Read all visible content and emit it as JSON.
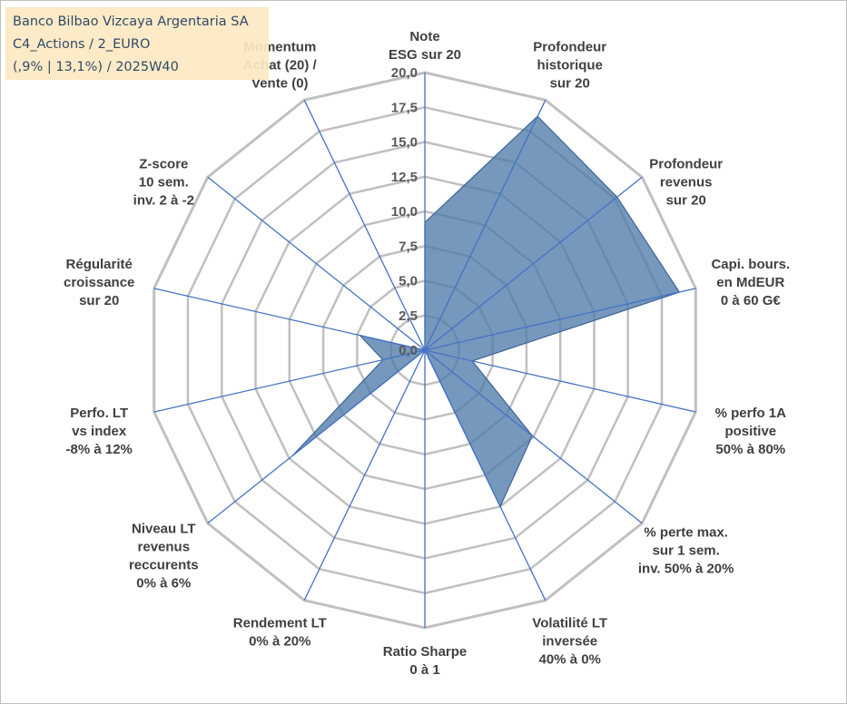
{
  "info_box": {
    "line1": "Banco Bilbao Vizcaya Argentaria SA",
    "line2": "C4_Actions / 2_EURO",
    "line3": "(,9% | 13,1%) / 2025W40"
  },
  "chart_data": {
    "type": "radar",
    "title": "",
    "rmin": 0,
    "rmax": 20,
    "ticks": [
      "0,0",
      "2,5",
      "5,0",
      "7,5",
      "10,0",
      "12,5",
      "15,0",
      "17,5",
      "20,0"
    ],
    "tick_values": [
      0,
      2.5,
      5,
      7.5,
      10,
      12.5,
      15,
      17.5,
      20
    ],
    "axes": [
      {
        "lines": [
          "Note",
          "ESG sur 20"
        ]
      },
      {
        "lines": [
          "Profondeur",
          "historique",
          "sur 20"
        ]
      },
      {
        "lines": [
          "Profondeur",
          "revenus",
          "sur 20"
        ]
      },
      {
        "lines": [
          "Capi. bours.",
          "en MdEUR",
          "0 à 60 G€"
        ]
      },
      {
        "lines": [
          "% perfo 1A",
          "positive",
          "50% à 80%"
        ]
      },
      {
        "lines": [
          "% perte max.",
          "sur 1 sem.",
          "inv. 50% à 20%"
        ]
      },
      {
        "lines": [
          "Volatilité LT",
          "inversée",
          "40% à 0%"
        ]
      },
      {
        "lines": [
          "Ratio Sharpe",
          "0 à 1"
        ]
      },
      {
        "lines": [
          "Rendement LT",
          "0% à 20%"
        ]
      },
      {
        "lines": [
          "Niveau LT",
          "revenus",
          "reccurents",
          "0% à 6%"
        ]
      },
      {
        "lines": [
          "Perfo. LT",
          "vs index",
          "-8% à 12%"
        ]
      },
      {
        "lines": [
          "Régularité",
          "croissance",
          "sur 20"
        ]
      },
      {
        "lines": [
          "Z-score",
          "10 sem.",
          "inv. 2 à -2"
        ]
      },
      {
        "lines": [
          "Momentum",
          "Achat (20) /",
          "Vente (0)"
        ]
      }
    ],
    "series": [
      {
        "name": "Banco Bilbao Vizcaya Argentaria SA",
        "values": [
          9.2,
          18.7,
          17.7,
          18.8,
          3.5,
          9.9,
          12.5,
          0,
          0,
          12.2,
          3.1,
          4.8,
          0,
          0
        ],
        "color": "#4f7bab"
      }
    ],
    "grid_color": "#c0c0c0",
    "spoke_color": "#4472c4"
  }
}
